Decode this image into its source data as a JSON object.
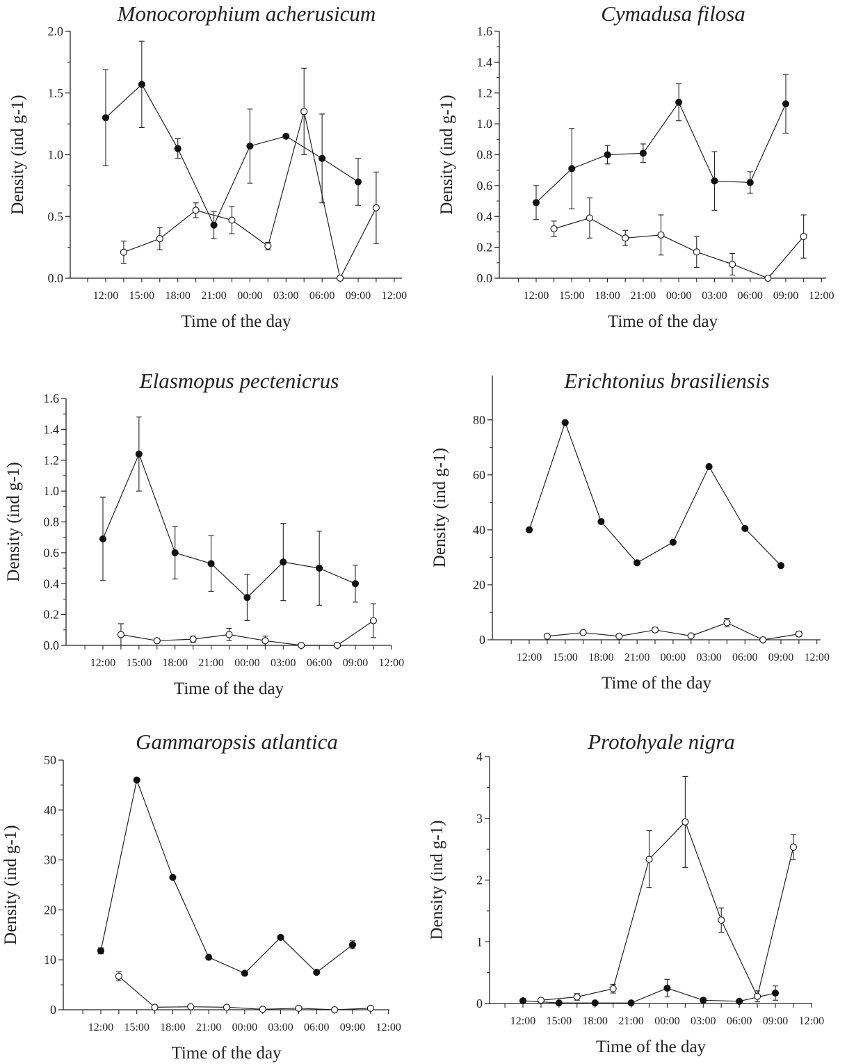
{
  "chart_data": [
    {
      "type": "line",
      "title": "Monocorophium acherusicum",
      "xlabel": "Time of the day",
      "ylabel": "Density (ind g-1)",
      "ylim": [
        0,
        2.0
      ],
      "yticks": [
        "0.0",
        "0.5",
        "1.0",
        "1.5",
        "2.0"
      ],
      "xticks": [
        "12:00",
        "15:00",
        "18:00",
        "21:00",
        "00:00",
        "03:00",
        "06:00",
        "09:00",
        "12:00"
      ],
      "series": [
        {
          "marker": "filled",
          "x": [
            12.0,
            15.0,
            18.0,
            21.0,
            24.0,
            27.0,
            30.0,
            33.0
          ],
          "y": [
            1.3,
            1.57,
            1.05,
            0.43,
            1.07,
            1.15,
            0.97,
            0.78
          ],
          "err": [
            0.39,
            0.35,
            0.08,
            0.11,
            0.3,
            0,
            0.36,
            0.19
          ]
        },
        {
          "marker": "open",
          "x": [
            13.5,
            16.5,
            19.5,
            22.5,
            25.5,
            28.5,
            31.5,
            34.5
          ],
          "y": [
            0.21,
            0.32,
            0.55,
            0.47,
            0.26,
            1.35,
            0.0,
            0.57
          ],
          "err": [
            0.09,
            0.09,
            0.06,
            0.11,
            0.03,
            0.35,
            0,
            0.29
          ]
        }
      ]
    },
    {
      "type": "line",
      "title": "Cymadusa filosa",
      "xlabel": "Time of the day",
      "ylabel": "Density (ind g-1)",
      "ylim": [
        0,
        1.6
      ],
      "yticks": [
        "0.0",
        "0.2",
        "0.4",
        "0.6",
        "0.8",
        "1.0",
        "1.2",
        "1.4",
        "1.6"
      ],
      "xticks": [
        "12:00",
        "15:00",
        "18:00",
        "21:00",
        "00:00",
        "03:00",
        "06:00",
        "09:00",
        "12:00"
      ],
      "series": [
        {
          "marker": "filled",
          "x": [
            12.0,
            15.0,
            18.0,
            21.0,
            24.0,
            27.0,
            30.0,
            33.0
          ],
          "y": [
            0.49,
            0.71,
            0.8,
            0.81,
            1.14,
            0.63,
            0.62,
            1.13
          ],
          "err": [
            0.11,
            0.26,
            0.06,
            0.06,
            0.12,
            0.19,
            0.07,
            0.19
          ]
        },
        {
          "marker": "open",
          "x": [
            13.5,
            16.5,
            19.5,
            22.5,
            25.5,
            28.5,
            31.5,
            34.5
          ],
          "y": [
            0.32,
            0.39,
            0.26,
            0.28,
            0.17,
            0.09,
            0.0,
            0.27
          ],
          "err": [
            0.05,
            0.13,
            0.05,
            0.13,
            0.1,
            0.07,
            0,
            0.14
          ]
        }
      ]
    },
    {
      "type": "line",
      "title": "Elasmopus pectenicrus",
      "xlabel": "Time of the day",
      "ylabel": "Density (ind g-1)",
      "ylim": [
        0,
        1.6
      ],
      "yticks": [
        "0.0",
        "0.2",
        "0.4",
        "0.6",
        "0.8",
        "1.0",
        "1.2",
        "1.4",
        "1.6"
      ],
      "xticks": [
        "12:00",
        "15:00",
        "18:00",
        "21:00",
        "00:00",
        "03:00",
        "06:00",
        "09:00",
        "12:00"
      ],
      "series": [
        {
          "marker": "filled",
          "x": [
            12.0,
            15.0,
            18.0,
            21.0,
            24.0,
            27.0,
            30.0,
            33.0
          ],
          "y": [
            0.69,
            1.24,
            0.6,
            0.53,
            0.31,
            0.54,
            0.5,
            0.4
          ],
          "err": [
            0.27,
            0.24,
            0.17,
            0.18,
            0.15,
            0.25,
            0.24,
            0.12
          ]
        },
        {
          "marker": "open",
          "x": [
            13.5,
            16.5,
            19.5,
            22.5,
            25.5,
            28.5,
            31.5,
            34.5
          ],
          "y": [
            0.07,
            0.03,
            0.04,
            0.07,
            0.03,
            0.0,
            0.0,
            0.16
          ],
          "err": [
            0.07,
            0.015,
            0.02,
            0.04,
            0.03,
            0,
            0,
            0.11
          ]
        }
      ]
    },
    {
      "type": "line",
      "title": "Erichtonius brasiliensis",
      "xlabel": "Time of the day",
      "ylabel": "Density (ind g-1)",
      "ylim": [
        0,
        85
      ],
      "yticks": [
        "0",
        "20",
        "40",
        "60",
        "80"
      ],
      "xticks": [
        "12:00",
        "15:00",
        "18:00",
        "21:00",
        "00:00",
        "03:00",
        "06:00",
        "09:00",
        "12:00"
      ],
      "series": [
        {
          "marker": "filled",
          "x": [
            12.0,
            15.0,
            18.0,
            21.0,
            24.0,
            27.0,
            30.0,
            33.0
          ],
          "y": [
            40.0,
            79.0,
            43.0,
            28.0,
            35.5,
            63.0,
            40.5,
            27.0
          ],
          "err": [
            0,
            0,
            0,
            0,
            0,
            0,
            0,
            0
          ]
        },
        {
          "marker": "open",
          "x": [
            13.5,
            16.5,
            19.5,
            22.5,
            25.5,
            28.5,
            31.5,
            34.5
          ],
          "y": [
            1.3,
            2.6,
            1.3,
            3.6,
            1.4,
            6.2,
            0.0,
            2.1
          ],
          "err": [
            0.5,
            0.6,
            0.5,
            0.8,
            0.5,
            1.5,
            0,
            0.9
          ]
        }
      ]
    },
    {
      "type": "line",
      "title": "Gammaropsis atlantica",
      "xlabel": "Time of the day",
      "ylabel": "Density (ind g-1)",
      "ylim": [
        0,
        50
      ],
      "yticks": [
        "0",
        "10",
        "20",
        "30",
        "40",
        "50"
      ],
      "xticks": [
        "12:00",
        "15:00",
        "18:00",
        "21:00",
        "00:00",
        "03:00",
        "06:00",
        "09:00",
        "12:00"
      ],
      "series": [
        {
          "marker": "filled",
          "x": [
            12.0,
            15.0,
            18.0,
            21.0,
            24.0,
            27.0,
            30.0,
            33.0
          ],
          "y": [
            11.8,
            46.0,
            26.5,
            10.5,
            7.3,
            14.5,
            7.5,
            13.0
          ],
          "err": [
            0.6,
            0,
            0,
            0,
            0,
            0,
            0,
            0.8
          ]
        },
        {
          "marker": "open",
          "x": [
            13.5,
            16.5,
            19.5,
            22.5,
            25.5,
            28.5,
            31.5,
            34.5
          ],
          "y": [
            6.7,
            0.5,
            0.6,
            0.5,
            0.1,
            0.3,
            0.0,
            0.3
          ],
          "err": [
            0.9,
            0.2,
            0.3,
            0.3,
            0.2,
            0.3,
            0,
            0.3
          ]
        }
      ]
    },
    {
      "type": "line",
      "title": "Protohyale nigra",
      "xlabel": "Time of the day",
      "ylabel": "Density (ind g-1)",
      "ylim": [
        0,
        4.5
      ],
      "yticks": [
        "0",
        "1",
        "2",
        "3",
        "4"
      ],
      "xticks": [
        "12:00",
        "15:00",
        "18:00",
        "21:00",
        "00:00",
        "03:00",
        "06:00",
        "09:00",
        "12:00"
      ],
      "series": [
        {
          "marker": "filled",
          "x": [
            12.0,
            15.0,
            18.0,
            21.0,
            24.0,
            27.0,
            30.0,
            33.0
          ],
          "y": [
            0.05,
            0.01,
            0.01,
            0.01,
            0.28,
            0.06,
            0.04,
            0.19
          ],
          "err": [
            0,
            0,
            0,
            0,
            0.16,
            0.04,
            0,
            0.13
          ]
        },
        {
          "marker": "open",
          "x": [
            13.5,
            16.5,
            19.5,
            22.5,
            25.5,
            28.5,
            31.5,
            34.5
          ],
          "y": [
            0.06,
            0.12,
            0.27,
            2.63,
            3.31,
            1.52,
            0.13,
            2.85
          ],
          "err": [
            0.03,
            0.06,
            0.08,
            0.52,
            0.83,
            0.22,
            0.1,
            0.23
          ]
        }
      ]
    }
  ]
}
